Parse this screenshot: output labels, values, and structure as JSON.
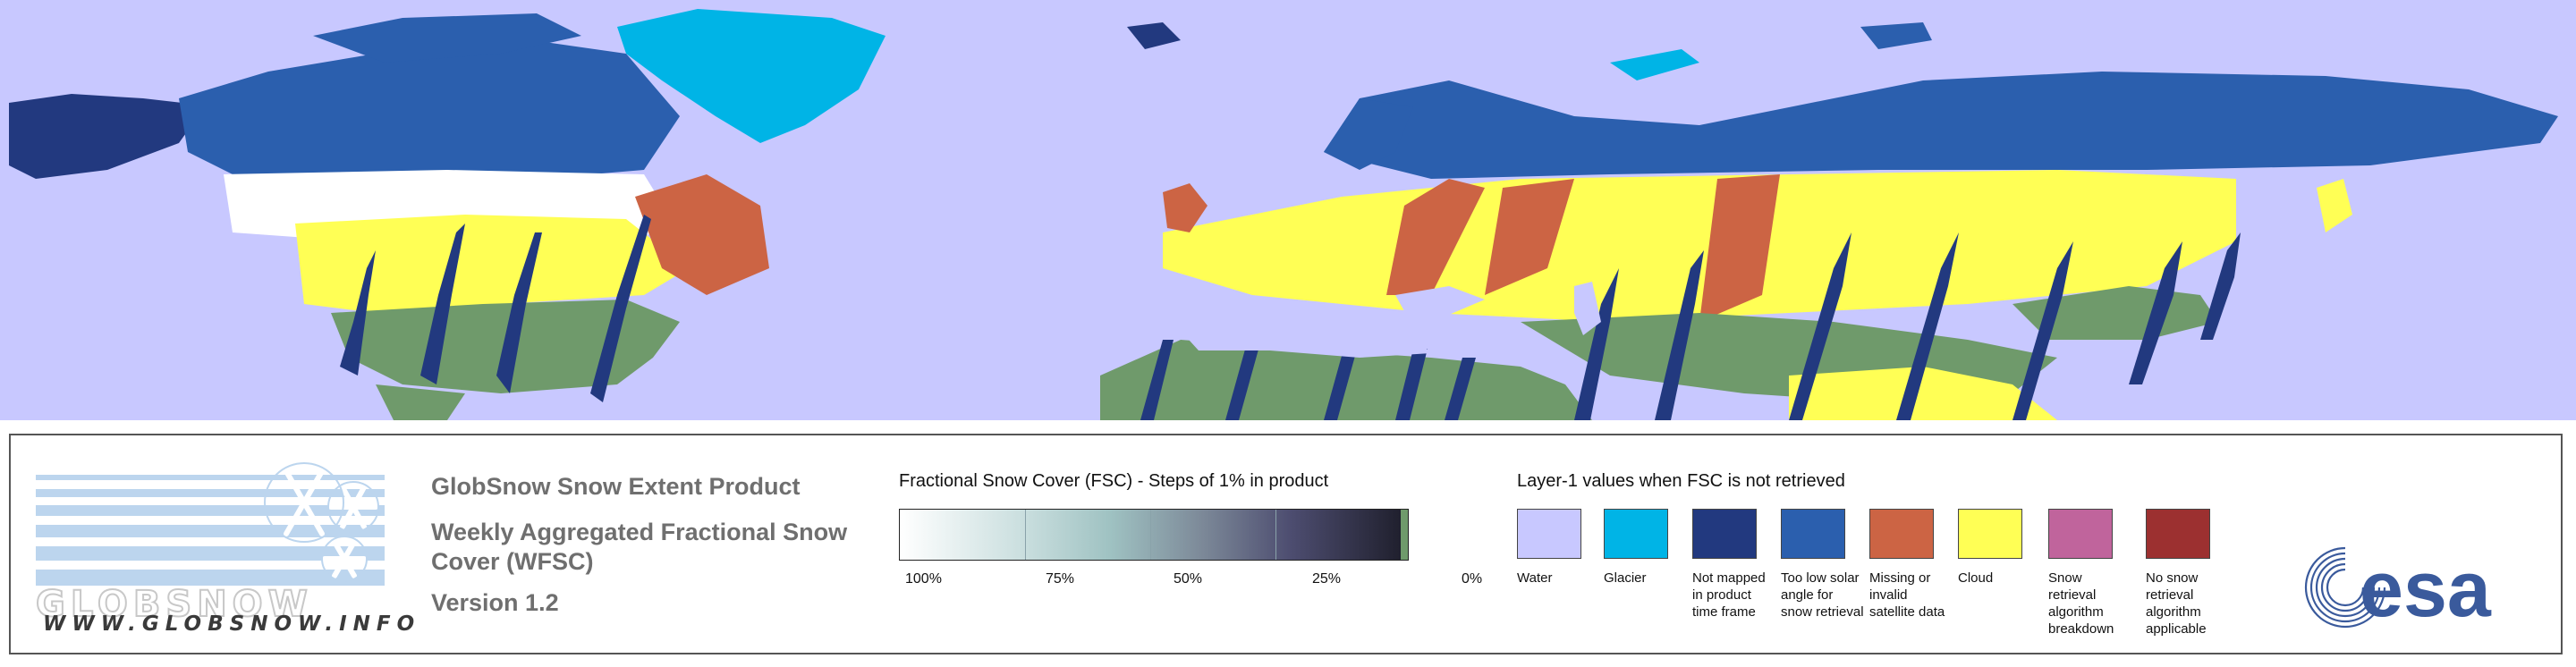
{
  "map": {
    "colors": {
      "water": "#c8c8ff",
      "glacier": "#00b4e6",
      "not_mapped": "#22397f",
      "too_low_solar": "#2b5fae",
      "missing": "#cc6444",
      "cloud": "#ffff55",
      "no_snow": "#6f9a6b",
      "snow": "#ffffff"
    }
  },
  "legend": {
    "logo_text": "GLOBSNOW",
    "logo_url": "WWW.GLOBSNOW.INFO",
    "product_line1": "GlobSnow Snow Extent Product",
    "product_line2": "Weekly Aggregated Fractional Snow Cover (WFSC)",
    "product_line3": "Version 1.2",
    "fsc": {
      "title": "Fractional Snow Cover (FSC) - Steps of 1% in product",
      "ticks": [
        "100%",
        "75%",
        "50%",
        "25%",
        "0%"
      ]
    },
    "layer1": {
      "title": "Layer-1 values when FSC is not retrieved",
      "items": [
        {
          "label": "Water",
          "color": "#c8c8ff"
        },
        {
          "label": "Glacier",
          "color": "#00b4e6"
        },
        {
          "label": "Not mapped in product time frame",
          "color": "#22397f"
        },
        {
          "label": "Too low solar angle for snow retrieval",
          "color": "#2b5fae"
        },
        {
          "label": "Missing or invalid satellite data",
          "color": "#cc6444"
        },
        {
          "label": "Cloud",
          "color": "#ffff55"
        },
        {
          "label": "Snow retrieval algorithm breakdown",
          "color": "#c0649c"
        },
        {
          "label": "No snow retrieval algorithm applicable",
          "color": "#9c3030"
        }
      ]
    },
    "esa_text": "esa"
  }
}
